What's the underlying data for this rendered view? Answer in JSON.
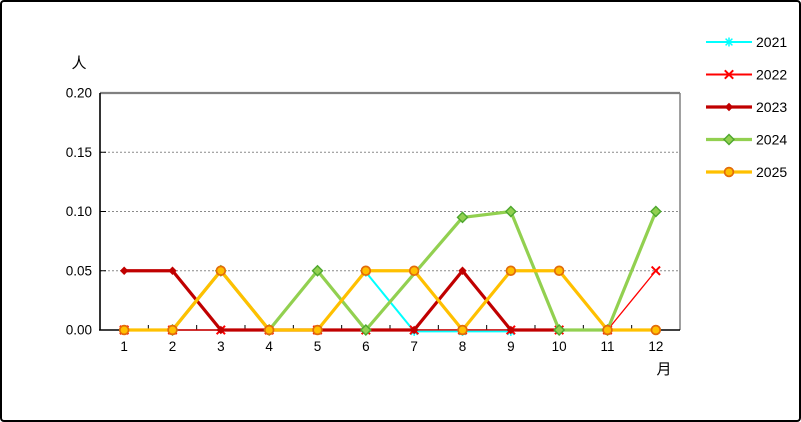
{
  "window": {
    "background": "#ffffff",
    "border_color": "#000000"
  },
  "chart_data": {
    "type": "line",
    "title": "",
    "ylabel": "人",
    "xlabel": "月",
    "x_categories": [
      "1",
      "2",
      "3",
      "4",
      "5",
      "6",
      "7",
      "8",
      "9",
      "10",
      "11",
      "12"
    ],
    "ylim": [
      0,
      0.2
    ],
    "ytick_step": 0.05,
    "yticks": [
      "0.00",
      "0.05",
      "0.10",
      "0.15",
      "0.20"
    ],
    "grid": "horizontal dashed at 0.05/0.10/0.15",
    "legend_position": "right-top",
    "axis_colors": {
      "axis": "#000000",
      "plot_border": "#808080",
      "gridline": "#8a8a8a",
      "text": "#000000"
    },
    "series": [
      {
        "name": "2021",
        "color": "#00FFFF",
        "marker": "asterisk",
        "line_width": 2,
        "values": [
          null,
          null,
          null,
          null,
          null,
          0.05,
          0,
          0,
          0,
          null,
          null,
          null
        ]
      },
      {
        "name": "2022",
        "color": "#FF0000",
        "marker": "x",
        "line_width": 1.3,
        "values": [
          0,
          0,
          0,
          0,
          0,
          0,
          0,
          0,
          0,
          0,
          0,
          0.05
        ]
      },
      {
        "name": "2023",
        "color": "#C00000",
        "marker": "diamond-filled",
        "line_width": 3.2,
        "values": [
          0.05,
          0.05,
          0,
          0,
          0,
          0,
          0,
          0.05,
          0,
          0,
          null,
          null
        ]
      },
      {
        "name": "2024",
        "color": "#92D050",
        "marker": "diamond",
        "marker_stroke": "#4EA72E",
        "line_width": 3.2,
        "values": [
          null,
          0,
          0.05,
          0,
          0.05,
          0,
          null,
          0.095,
          0.1,
          0,
          0,
          0.1
        ]
      },
      {
        "name": "2025",
        "color": "#FFC000",
        "marker": "circle",
        "marker_stroke": "#E36C09",
        "line_width": 3.2,
        "values": [
          0,
          0,
          0.05,
          0,
          0,
          0.05,
          0.05,
          0,
          0.05,
          0.05,
          0,
          0
        ]
      }
    ]
  }
}
